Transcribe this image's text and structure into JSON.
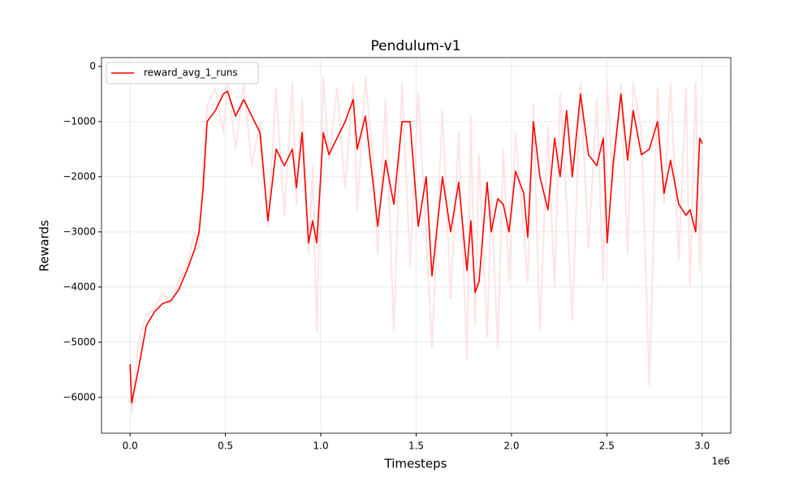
{
  "chart_data": {
    "type": "line",
    "title": "Pendulum-v1",
    "xlabel": "Timesteps",
    "ylabel": "Rewards",
    "x_offset_label": "1e6",
    "xlim": [
      -150000,
      3150000
    ],
    "ylim": [
      -6650,
      160
    ],
    "xticks": [
      {
        "value": 0,
        "label": "0.0"
      },
      {
        "value": 500000,
        "label": "0.5"
      },
      {
        "value": 1000000,
        "label": "1.0"
      },
      {
        "value": 1500000,
        "label": "1.5"
      },
      {
        "value": 2000000,
        "label": "2.0"
      },
      {
        "value": 2500000,
        "label": "2.5"
      },
      {
        "value": 3000000,
        "label": "3.0"
      }
    ],
    "yticks": [
      {
        "value": -6000,
        "label": "−6000"
      },
      {
        "value": -5000,
        "label": "−5000"
      },
      {
        "value": -4000,
        "label": "−4000"
      },
      {
        "value": -3000,
        "label": "−3000"
      },
      {
        "value": -2000,
        "label": "−2000"
      },
      {
        "value": -1000,
        "label": "−1000"
      },
      0
    ],
    "grid": true,
    "legend": "upper left",
    "x": [
      0,
      8500,
      43000,
      85000,
      128000,
      170000,
      213000,
      255000,
      298000,
      340000,
      362000,
      383000,
      404000,
      447000,
      489000,
      511000,
      553000,
      596000,
      638000,
      681000,
      723000,
      766000,
      809000,
      851000,
      872000,
      902000,
      936000,
      957000,
      979000,
      1013000,
      1043000,
      1085000,
      1128000,
      1170000,
      1191000,
      1234000,
      1277000,
      1298000,
      1340000,
      1383000,
      1426000,
      1468000,
      1511000,
      1553000,
      1583000,
      1638000,
      1681000,
      1723000,
      1766000,
      1787000,
      1809000,
      1830000,
      1872000,
      1894000,
      1928000,
      1957000,
      1987000,
      2021000,
      2064000,
      2085000,
      2115000,
      2149000,
      2191000,
      2226000,
      2255000,
      2289000,
      2319000,
      2362000,
      2404000,
      2447000,
      2481000,
      2502000,
      2532000,
      2574000,
      2609000,
      2638000,
      2681000,
      2723000,
      2766000,
      2800000,
      2834000,
      2877000,
      2915000,
      2936000,
      2966000,
      2987000,
      3000000
    ],
    "series": [
      {
        "color": "#ffe3e3",
        "values": [
          -5400,
          -6300,
          -5000,
          -4500,
          -4400,
          -4100,
          -4300,
          -3900,
          -3600,
          -3000,
          -3300,
          -1800,
          -700,
          -400,
          -1200,
          -200,
          -1500,
          -300,
          -1800,
          -1000,
          -2900,
          -400,
          -2700,
          -300,
          -2500,
          -600,
          -3400,
          -1800,
          -4800,
          -200,
          -1700,
          -400,
          -2200,
          -300,
          -2600,
          -200,
          -1800,
          -3400,
          -600,
          -4800,
          -300,
          -3600,
          -500,
          -3100,
          -5100,
          -800,
          -4200,
          -1200,
          -5300,
          -900,
          -4700,
          -1600,
          -4900,
          -2300,
          -5100,
          -1500,
          -3900,
          -1200,
          -3000,
          -3900,
          -700,
          -4800,
          -1100,
          -4000,
          -500,
          -2500,
          -4600,
          -300,
          -3300,
          -600,
          -3900,
          -300,
          -2100,
          -300,
          -3400,
          -300,
          -1200,
          -5800,
          -400,
          -2500,
          -300,
          -3500,
          -400,
          -4000,
          -300,
          -3700,
          -1500
        ]
      },
      {
        "name": "reward_avg_1_runs",
        "color": "#ff0000",
        "values": [
          -5400,
          -6100,
          -5500,
          -4700,
          -4450,
          -4300,
          -4250,
          -4050,
          -3700,
          -3300,
          -3000,
          -2200,
          -1000,
          -800,
          -500,
          -450,
          -900,
          -600,
          -900,
          -1200,
          -2800,
          -1500,
          -1800,
          -1500,
          -2200,
          -1200,
          -3200,
          -2800,
          -3200,
          -1200,
          -1600,
          -1300,
          -1000,
          -600,
          -1500,
          -900,
          -2200,
          -2900,
          -1700,
          -2500,
          -1000,
          -1000,
          -2900,
          -2000,
          -3800,
          -2000,
          -3000,
          -2100,
          -3700,
          -2800,
          -4100,
          -3900,
          -2100,
          -3000,
          -2400,
          -2500,
          -3000,
          -1900,
          -2300,
          -3100,
          -1000,
          -2000,
          -2600,
          -1300,
          -2000,
          -800,
          -2000,
          -500,
          -1600,
          -1800,
          -1300,
          -3200,
          -1800,
          -500,
          -1700,
          -800,
          -1600,
          -1500,
          -1000,
          -2300,
          -1700,
          -2500,
          -2700,
          -2600,
          -3000,
          -1300,
          -1400
        ]
      }
    ]
  }
}
